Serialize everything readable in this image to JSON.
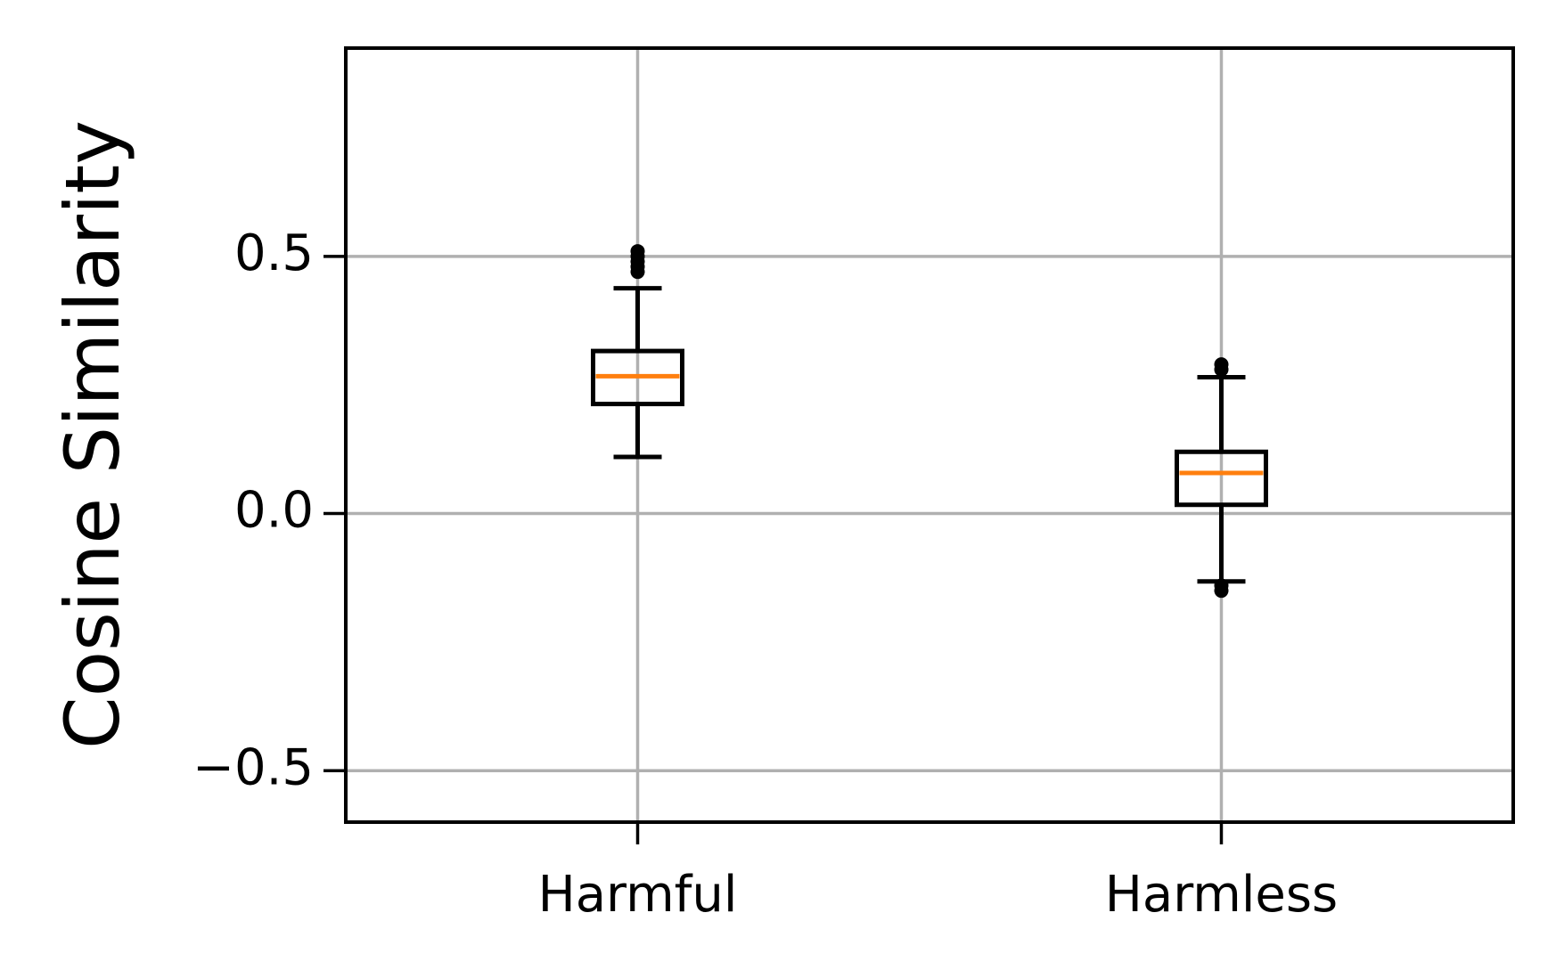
{
  "chart_data": {
    "type": "box",
    "ylabel": "Cosine Similarity",
    "categories": [
      "Harmful",
      "Harmless"
    ],
    "boxes": [
      {
        "whislo": 0.11,
        "q1": 0.213,
        "med": 0.267,
        "q3": 0.316,
        "whishi": 0.438,
        "fliers": [
          0.47,
          0.48,
          0.49,
          0.5,
          0.51
        ]
      },
      {
        "whislo": -0.132,
        "q1": 0.017,
        "med": 0.079,
        "q3": 0.12,
        "whishi": 0.265,
        "fliers": [
          0.28,
          0.29,
          -0.14,
          -0.15
        ]
      }
    ],
    "box_color": "#000000",
    "median_color": "#ff7f0e",
    "xlim": [
      0.5,
      2.5
    ],
    "ylim": [
      -0.6,
      0.905
    ],
    "yticks": [
      {
        "value": -0.5,
        "label": "−0.5"
      },
      {
        "value": 0,
        "label": "0.0"
      },
      0.5
    ],
    "grid": true
  }
}
